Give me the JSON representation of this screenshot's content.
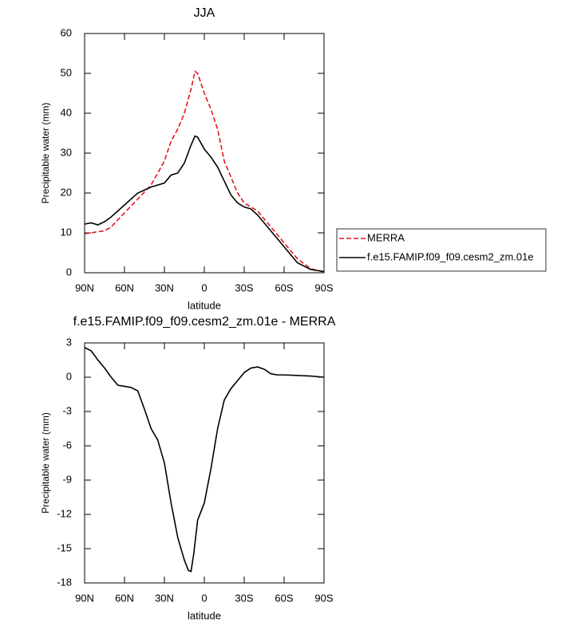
{
  "chart_data": [
    {
      "type": "line",
      "title": "JJA",
      "xlabel": "latitude",
      "ylabel": "Precipitable water (mm)",
      "x": [
        90,
        85,
        80,
        75,
        70,
        60,
        50,
        40,
        30,
        25,
        20,
        15,
        10,
        7,
        5,
        0,
        -5,
        -10,
        -15,
        -20,
        -25,
        -30,
        -35,
        -40,
        -50,
        -60,
        -70,
        -80,
        -90
      ],
      "series": [
        {
          "name": "MERRA",
          "color": "#e0181e",
          "dash": true,
          "values": [
            9.8,
            10,
            10.3,
            10.5,
            11.5,
            15,
            18.5,
            22,
            28,
            33,
            36,
            40,
            46,
            50.5,
            50,
            45,
            41,
            36,
            28,
            24,
            20,
            17.5,
            16.5,
            15.5,
            11.5,
            7.5,
            3.5,
            1,
            0.2
          ]
        },
        {
          "name": "f.e15.FAMIP.f09_f09.cesm2_zm.01e",
          "color": "#000000",
          "dash": false,
          "values": [
            12.2,
            12.5,
            12,
            12.8,
            14,
            17,
            20,
            21.5,
            22.5,
            24.5,
            25,
            27.5,
            32,
            34.3,
            34,
            31,
            29,
            26.5,
            23,
            19.5,
            17.5,
            16.5,
            16,
            14.5,
            10.5,
            6.5,
            2.5,
            0.8,
            0.3
          ]
        }
      ],
      "xlim": [
        90,
        -90
      ],
      "xticks": [
        {
          "value": 90,
          "label": "90N"
        },
        {
          "value": 60,
          "label": "60N"
        },
        {
          "value": 30,
          "label": "30N"
        },
        0,
        {
          "value": -30,
          "label": "30S"
        },
        {
          "value": -60,
          "label": "60S"
        },
        {
          "value": -90,
          "label": "90S"
        }
      ],
      "ylim": [
        0,
        60
      ],
      "yticks": [
        0,
        10,
        20,
        30,
        40,
        50,
        60
      ],
      "legend": "right"
    },
    {
      "type": "line",
      "title": "f.e15.FAMIP.f09_f09.cesm2_zm.01e - MERRA",
      "xlabel": "latitude",
      "ylabel": "Precipitable water (mm)",
      "x": [
        90,
        85,
        80,
        75,
        70,
        65,
        60,
        55,
        50,
        45,
        40,
        35,
        30,
        25,
        20,
        15,
        12,
        10,
        8,
        5,
        0,
        -5,
        -10,
        -15,
        -20,
        -25,
        -30,
        -35,
        -40,
        -45,
        -50,
        -55,
        -60,
        -70,
        -80,
        -90
      ],
      "values": [
        2.6,
        2.3,
        1.5,
        0.8,
        0,
        -0.7,
        -0.8,
        -0.9,
        -1.2,
        -2.8,
        -4.5,
        -5.5,
        -7.5,
        -11,
        -14,
        -16,
        -16.9,
        -17,
        -15.5,
        -12.5,
        -11,
        -8,
        -4.5,
        -2,
        -1,
        -0.3,
        0.4,
        0.8,
        0.9,
        0.7,
        0.3,
        0.2,
        0.2,
        0.15,
        0.1,
        0
      ],
      "color": "#000000",
      "xlim": [
        90,
        -90
      ],
      "xticks": [
        {
          "value": 90,
          "label": "90N"
        },
        {
          "value": 60,
          "label": "60N"
        },
        {
          "value": 30,
          "label": "30N"
        },
        0,
        {
          "value": -30,
          "label": "30S"
        },
        {
          "value": -60,
          "label": "60S"
        },
        {
          "value": -90,
          "label": "90S"
        }
      ],
      "ylim": [
        -18,
        3
      ],
      "yticks": [
        -18,
        -15,
        -12,
        -9,
        -6,
        -3,
        0,
        3
      ]
    }
  ]
}
